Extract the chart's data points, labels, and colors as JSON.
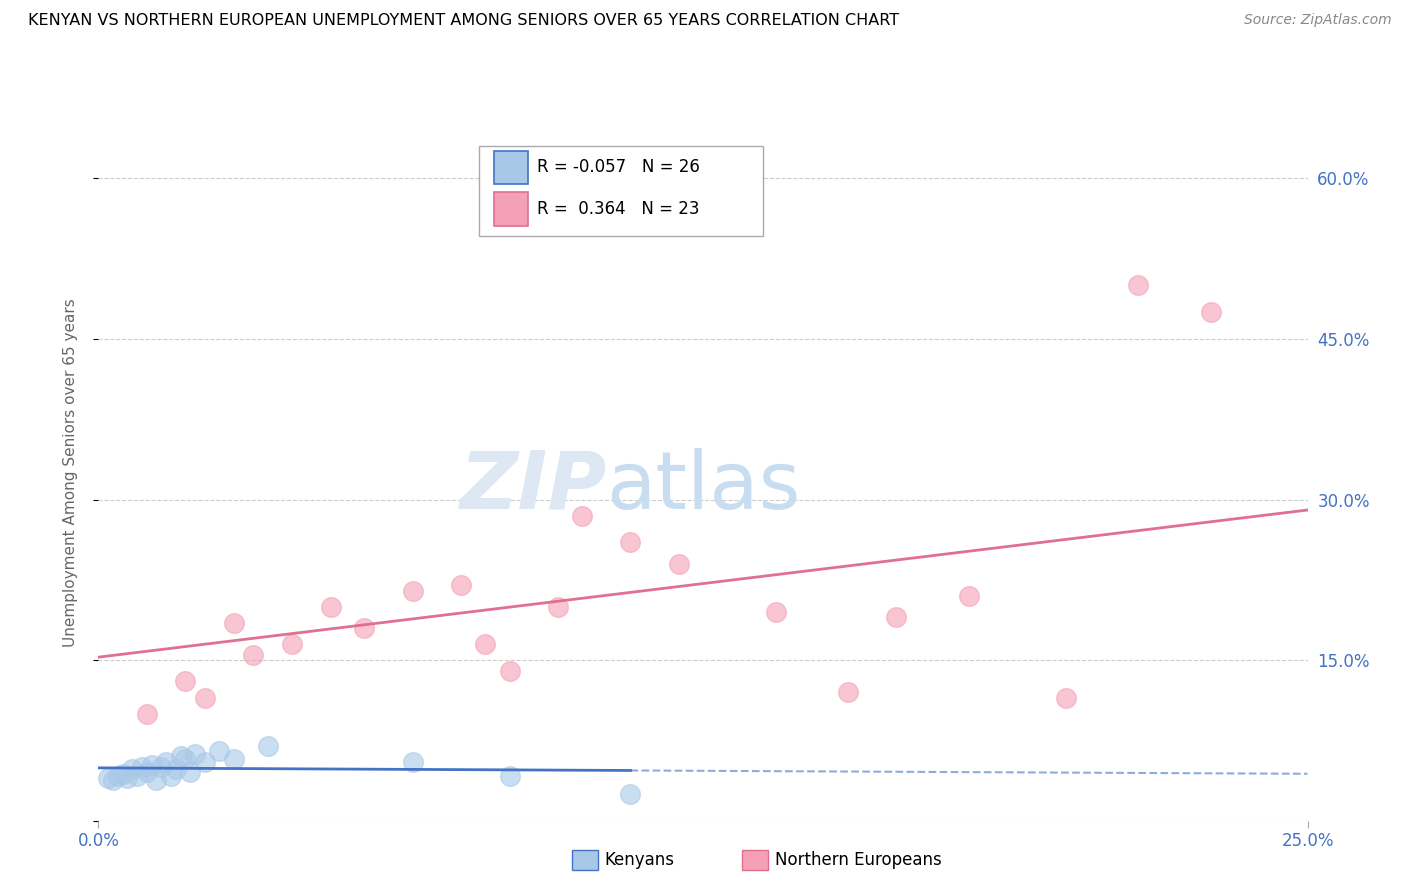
{
  "title": "KENYAN VS NORTHERN EUROPEAN UNEMPLOYMENT AMONG SENIORS OVER 65 YEARS CORRELATION CHART",
  "source": "Source: ZipAtlas.com",
  "ylabel_label": "Unemployment Among Seniors over 65 years",
  "xlim": [
    0.0,
    0.25
  ],
  "ylim": [
    0.0,
    0.65
  ],
  "kenyan_R": -0.057,
  "kenyan_N": 26,
  "northern_R": 0.364,
  "northern_N": 23,
  "kenyan_color": "#a8c8e8",
  "northern_color": "#f4a0b5",
  "kenyan_line_color": "#4472c4",
  "northern_line_color": "#e07090",
  "kenyan_points_x": [
    0.002,
    0.003,
    0.004,
    0.005,
    0.006,
    0.007,
    0.008,
    0.009,
    0.01,
    0.011,
    0.012,
    0.013,
    0.014,
    0.015,
    0.016,
    0.017,
    0.018,
    0.019,
    0.02,
    0.022,
    0.025,
    0.028,
    0.035,
    0.065,
    0.085,
    0.11
  ],
  "kenyan_points_y": [
    0.04,
    0.038,
    0.042,
    0.044,
    0.04,
    0.048,
    0.042,
    0.05,
    0.045,
    0.052,
    0.038,
    0.05,
    0.055,
    0.042,
    0.048,
    0.06,
    0.058,
    0.045,
    0.062,
    0.055,
    0.065,
    0.058,
    0.07,
    0.055,
    0.042,
    0.025
  ],
  "northern_points_x": [
    0.01,
    0.018,
    0.022,
    0.028,
    0.032,
    0.04,
    0.048,
    0.055,
    0.065,
    0.075,
    0.08,
    0.085,
    0.095,
    0.1,
    0.11,
    0.12,
    0.14,
    0.155,
    0.165,
    0.18,
    0.2,
    0.215,
    0.23
  ],
  "northern_points_y": [
    0.1,
    0.13,
    0.115,
    0.185,
    0.155,
    0.165,
    0.2,
    0.18,
    0.215,
    0.22,
    0.165,
    0.14,
    0.2,
    0.285,
    0.26,
    0.24,
    0.195,
    0.12,
    0.19,
    0.21,
    0.115,
    0.5,
    0.475
  ]
}
